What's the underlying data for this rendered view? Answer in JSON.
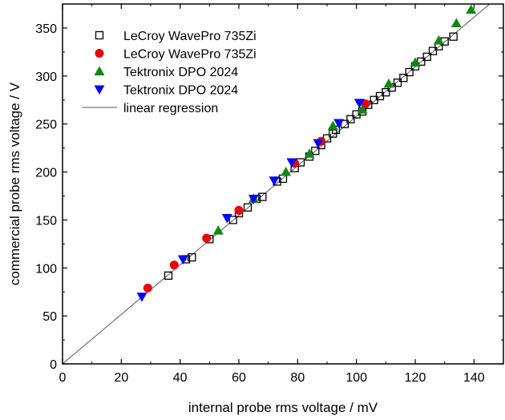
{
  "chart_data": {
    "type": "scatter",
    "xlabel": "internal probe rms voltage / mV",
    "ylabel": "commercial probe rms voltage / V",
    "xlim": [
      0,
      150
    ],
    "ylim": [
      0,
      375
    ],
    "xticks": [
      0,
      20,
      40,
      60,
      80,
      100,
      120,
      140
    ],
    "yticks": [
      0,
      50,
      100,
      150,
      200,
      250,
      300,
      350
    ],
    "grid": false,
    "legend_position": "top-left",
    "series": [
      {
        "name": "LeCroy WavePro 735Zi",
        "marker": "open-square",
        "color": "#000000",
        "points": [
          [
            36,
            92
          ],
          [
            42,
            109
          ],
          [
            44,
            111
          ],
          [
            50,
            130
          ],
          [
            58,
            150
          ],
          [
            60,
            157
          ],
          [
            63,
            163
          ],
          [
            66,
            172
          ],
          [
            68,
            174
          ],
          [
            73,
            190
          ],
          [
            75,
            193
          ],
          [
            79,
            204
          ],
          [
            81,
            210
          ],
          [
            84,
            216
          ],
          [
            86,
            222
          ],
          [
            88,
            228
          ],
          [
            90,
            235
          ],
          [
            92,
            240
          ],
          [
            93,
            244
          ],
          [
            96,
            250
          ],
          [
            98,
            255
          ],
          [
            100,
            260
          ],
          [
            102,
            263
          ],
          [
            104,
            270
          ],
          [
            106,
            275
          ],
          [
            108,
            279
          ],
          [
            110,
            283
          ],
          [
            112,
            288
          ],
          [
            114,
            293
          ],
          [
            116,
            298
          ],
          [
            118,
            304
          ],
          [
            120,
            310
          ],
          [
            122,
            315
          ],
          [
            124,
            320
          ],
          [
            126,
            326
          ],
          [
            128,
            331
          ],
          [
            130,
            336
          ],
          [
            133,
            341
          ]
        ]
      },
      {
        "name": "LeCroy WavePro 735Zi",
        "marker": "filled-circle",
        "color": "#e8000b",
        "points": [
          [
            29,
            79
          ],
          [
            38,
            103
          ],
          [
            49,
            131
          ],
          [
            60,
            160
          ],
          [
            79,
            209
          ],
          [
            88,
            232
          ],
          [
            103,
            271
          ]
        ]
      },
      {
        "name": "Tektronix DPO 2024",
        "marker": "triangle-up",
        "color": "#118811",
        "points": [
          [
            53,
            139
          ],
          [
            65,
            172
          ],
          [
            76,
            200
          ],
          [
            84,
            219
          ],
          [
            92,
            248
          ],
          [
            102,
            265
          ],
          [
            111,
            292
          ],
          [
            120,
            314
          ],
          [
            128,
            337
          ],
          [
            134,
            355
          ],
          [
            139,
            369
          ]
        ]
      },
      {
        "name": "Tektronix DPO 2024",
        "marker": "triangle-down",
        "color": "#0000ff",
        "points": [
          [
            27,
            70
          ],
          [
            41,
            109
          ],
          [
            56,
            152
          ],
          [
            65,
            172
          ],
          [
            72,
            191
          ],
          [
            78,
            210
          ],
          [
            87,
            230
          ],
          [
            94,
            251
          ],
          [
            101,
            272
          ]
        ]
      },
      {
        "name": "linear regression",
        "marker": "line",
        "color": "#555555",
        "points": [
          [
            0,
            0
          ],
          [
            150,
            387
          ]
        ]
      }
    ]
  }
}
